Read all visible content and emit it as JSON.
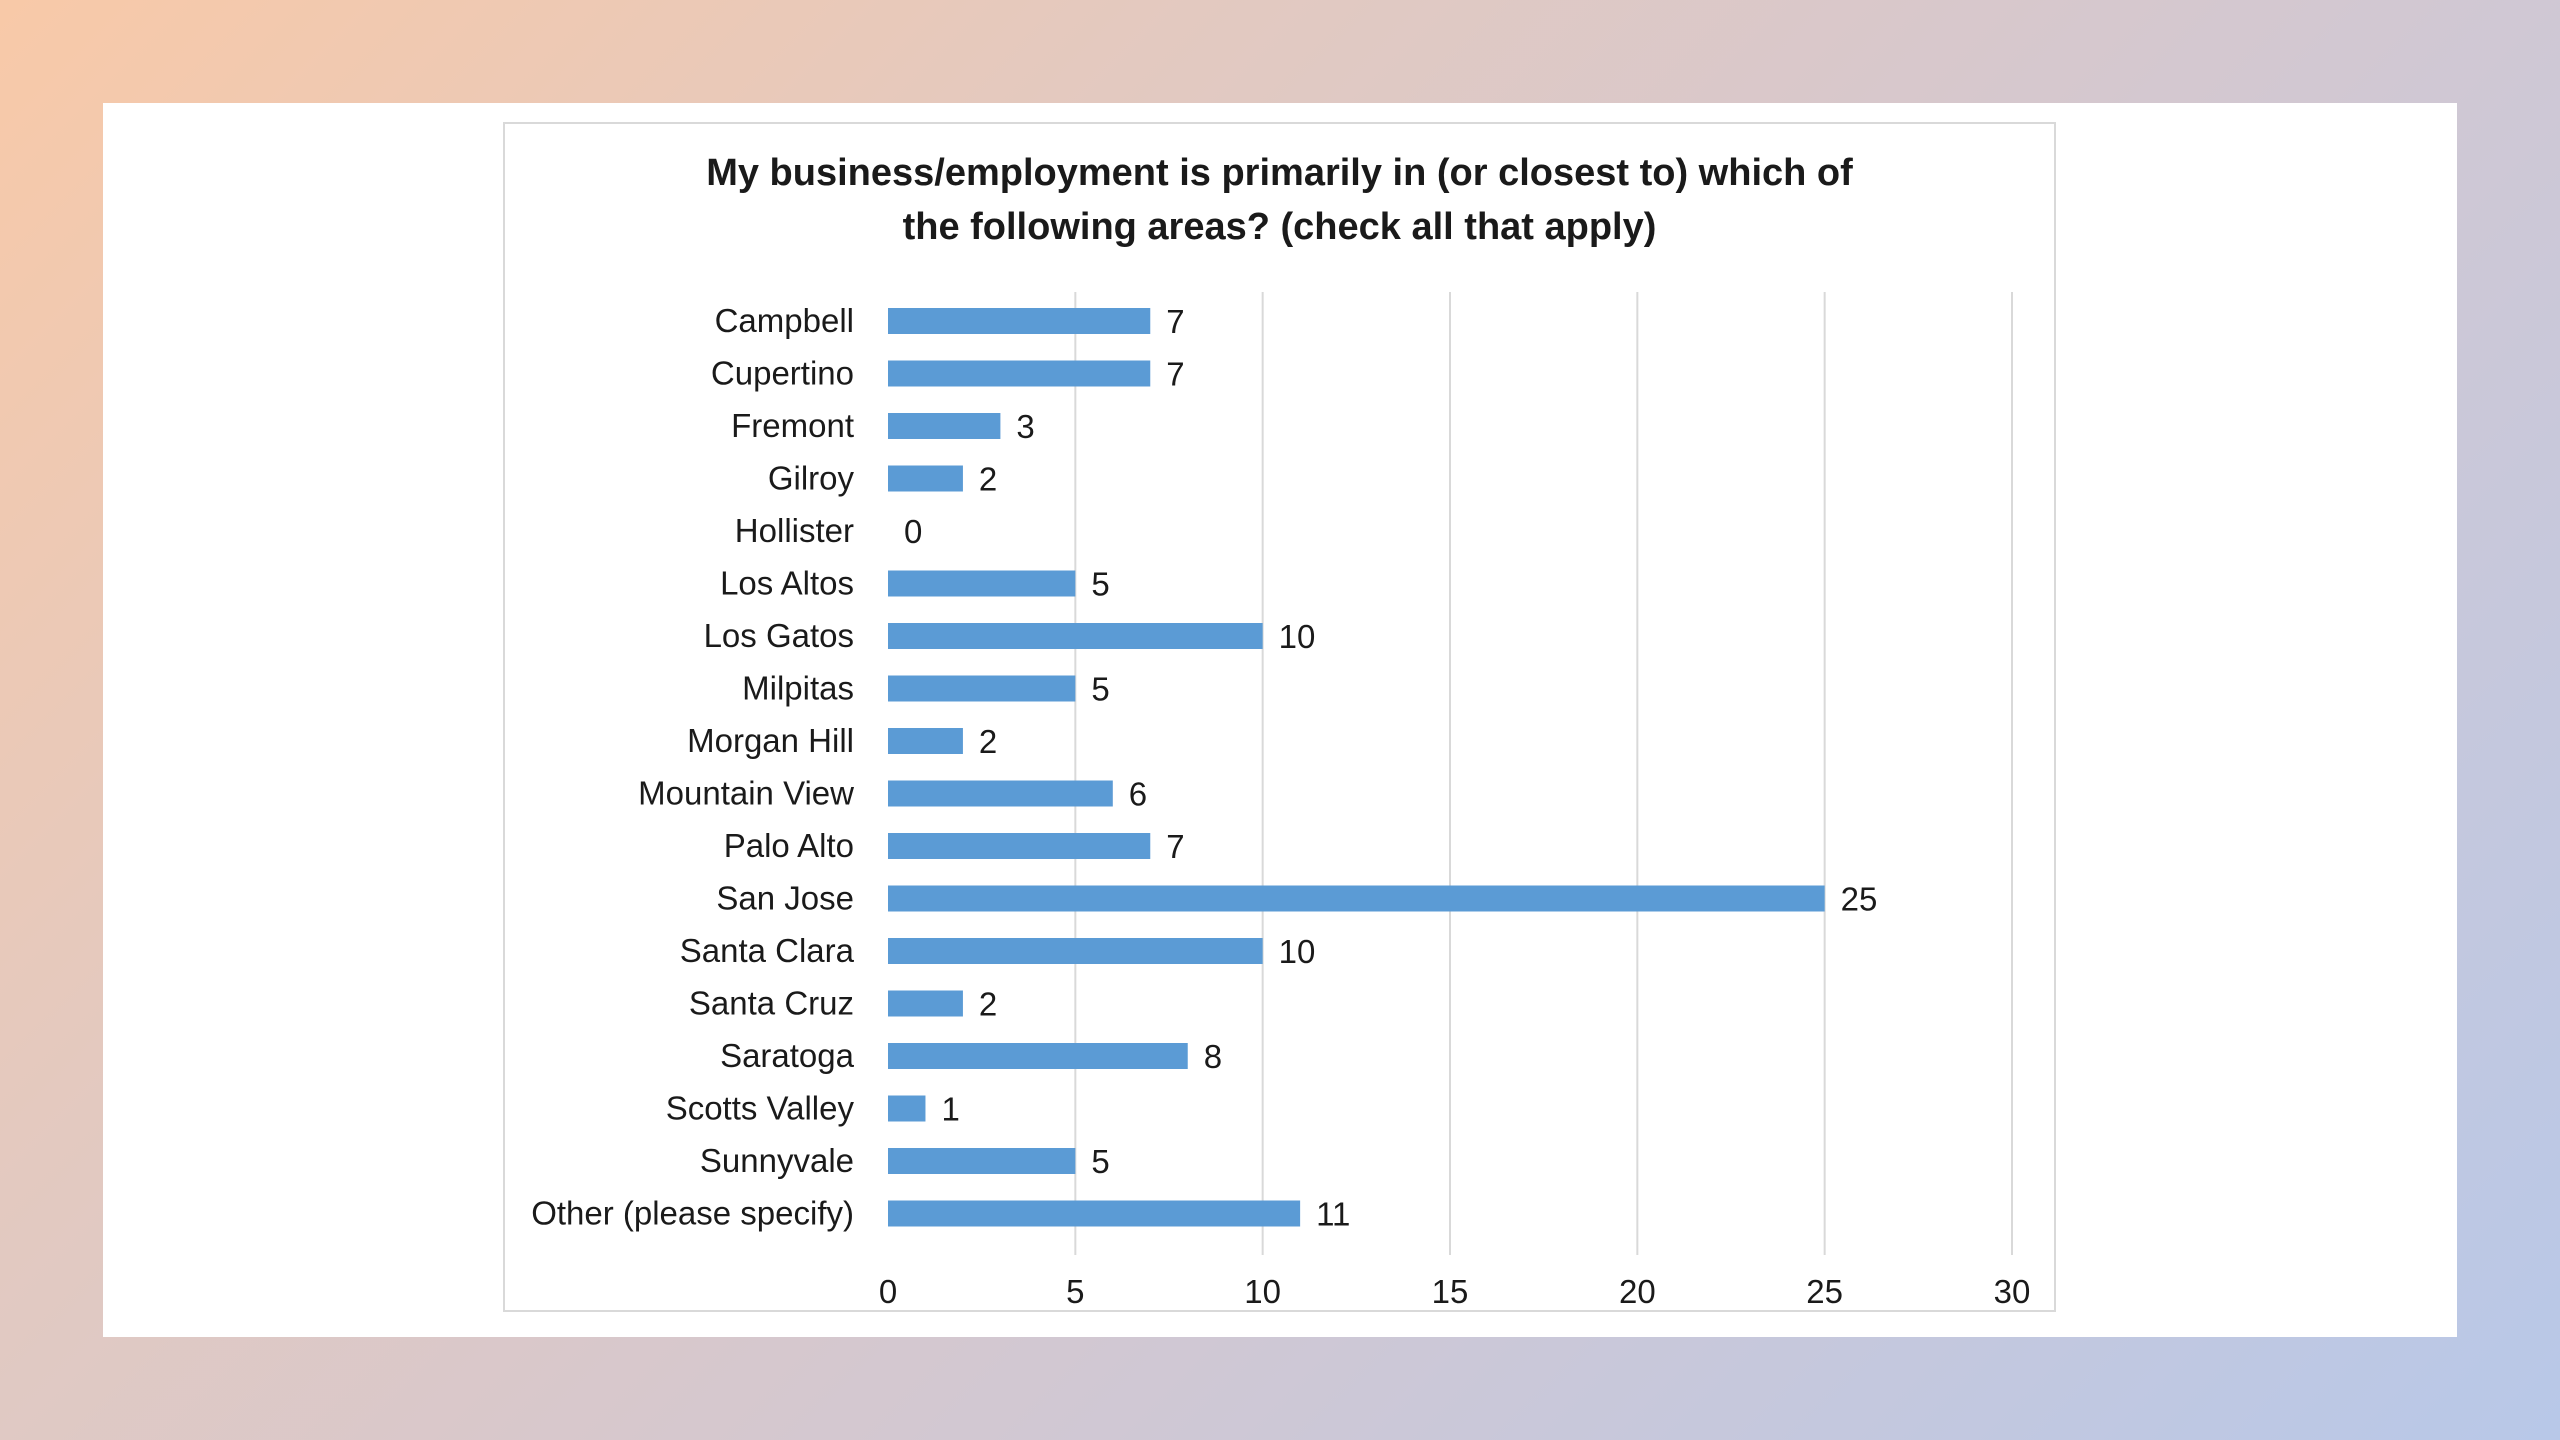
{
  "chart_data": {
    "type": "bar",
    "orientation": "horizontal",
    "title": "My business/employment is primarily in (or closest to) which of the following areas? (check all that apply)",
    "title_lines": [
      "My business/employment is primarily in (or closest to) which of",
      "the following areas? (check all that apply)"
    ],
    "categories": [
      "Campbell",
      "Cupertino",
      "Fremont",
      "Gilroy",
      "Hollister",
      "Los Altos",
      "Los Gatos",
      "Milpitas",
      "Morgan Hill",
      "Mountain View",
      "Palo Alto",
      "San Jose",
      "Santa Clara",
      "Santa Cruz",
      "Saratoga",
      "Scotts Valley",
      "Sunnyvale",
      "Other (please specify)"
    ],
    "values": [
      7,
      7,
      3,
      2,
      0,
      5,
      10,
      5,
      2,
      6,
      7,
      25,
      10,
      2,
      8,
      1,
      5,
      11
    ],
    "xlim": [
      0,
      30
    ],
    "xticks": [
      0,
      5,
      10,
      15,
      20,
      25,
      30
    ],
    "grid": "vertical",
    "legend": "none",
    "data_labels": true,
    "colors": {
      "bar": "#5b9bd5",
      "grid": "#d9d9d9",
      "text": "#1a1a1a",
      "frame": "#d9d9d9"
    }
  }
}
